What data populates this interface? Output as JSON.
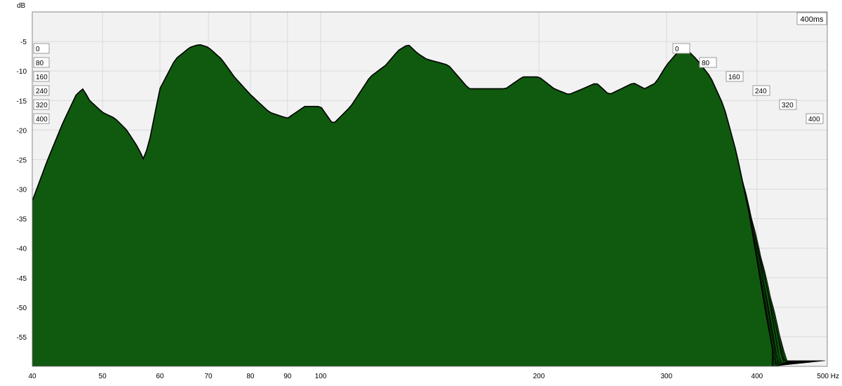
{
  "chart_data": {
    "type": "waterfall",
    "y_unit": "dB",
    "x_unit": "Hz",
    "x_scale": "log",
    "xlim": [
      40,
      500
    ],
    "ylim": [
      -60,
      0
    ],
    "x_ticks": [
      40,
      50,
      60,
      70,
      80,
      90,
      100,
      200,
      300,
      400,
      500
    ],
    "x_tick_labels": [
      "40",
      "50",
      "60",
      "70",
      "80",
      "90",
      "100",
      "200",
      "300",
      "400",
      "500 Hz"
    ],
    "y_ticks": [
      -5,
      -10,
      -15,
      -20,
      -25,
      -30,
      -35,
      -40,
      -45,
      -50,
      -55
    ],
    "y_tick_labels": [
      "-5",
      "-10",
      "-15",
      "-20",
      "-25",
      "-30",
      "-35",
      "-40",
      "-45",
      "-50",
      "-55"
    ],
    "time_unit": "ms",
    "time_range": [
      0,
      400
    ],
    "time_marker": "400ms",
    "time_ticks": [
      "0",
      "80",
      "160",
      "240",
      "320",
      "400"
    ],
    "slice_count": 40,
    "fill_color": "#0f5a0f",
    "line_color": "#000000",
    "front_curve": [
      [
        40,
        -32
      ],
      [
        42,
        -25
      ],
      [
        44,
        -19
      ],
      [
        46,
        -14
      ],
      [
        47,
        -13
      ],
      [
        48,
        -15
      ],
      [
        50,
        -17
      ],
      [
        52,
        -18
      ],
      [
        54,
        -20
      ],
      [
        56,
        -23
      ],
      [
        57,
        -25
      ],
      [
        58,
        -22
      ],
      [
        60,
        -13
      ],
      [
        63,
        -8
      ],
      [
        66,
        -6
      ],
      [
        68,
        -5.5
      ],
      [
        70,
        -6
      ],
      [
        73,
        -8
      ],
      [
        76,
        -11
      ],
      [
        80,
        -14
      ],
      [
        85,
        -17
      ],
      [
        90,
        -18
      ],
      [
        95,
        -16
      ],
      [
        100,
        -16
      ],
      [
        104,
        -19
      ],
      [
        110,
        -16
      ],
      [
        117,
        -11
      ],
      [
        123,
        -9
      ],
      [
        128,
        -6.5
      ],
      [
        132,
        -5.5
      ],
      [
        136,
        -7
      ],
      [
        140,
        -8
      ],
      [
        145,
        -8.5
      ],
      [
        150,
        -9
      ],
      [
        155,
        -11
      ],
      [
        160,
        -13
      ],
      [
        170,
        -13
      ],
      [
        180,
        -13
      ],
      [
        190,
        -11
      ],
      [
        200,
        -11
      ],
      [
        210,
        -13
      ],
      [
        220,
        -14
      ],
      [
        230,
        -13
      ],
      [
        240,
        -12
      ],
      [
        250,
        -14
      ],
      [
        260,
        -13
      ],
      [
        270,
        -12
      ],
      [
        280,
        -13
      ],
      [
        290,
        -12
      ],
      [
        300,
        -9
      ],
      [
        310,
        -7
      ],
      [
        318,
        -6
      ],
      [
        330,
        -8
      ],
      [
        345,
        -11
      ],
      [
        360,
        -16
      ],
      [
        375,
        -24
      ],
      [
        390,
        -34
      ],
      [
        400,
        -42
      ],
      [
        410,
        -50
      ],
      [
        420,
        -57
      ]
    ]
  }
}
